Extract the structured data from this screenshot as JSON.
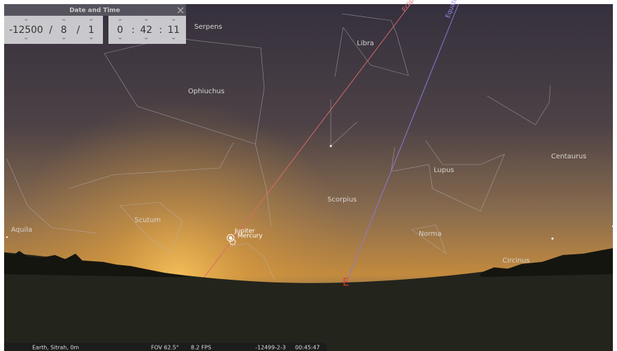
{
  "dialog": {
    "title": "Date and Time",
    "date_fields": [
      "-12500",
      "8",
      "1"
    ],
    "date_separator": "/",
    "time_fields": [
      "0",
      "42",
      "11"
    ],
    "time_separator": ":"
  },
  "sky_labels": {
    "constellations": [
      "Serpens",
      "Libra",
      "Ophiuchus",
      "Centaurus",
      "Lupus",
      "Scorpius",
      "Scutum",
      "Aquila",
      "Norma",
      "Circinus"
    ],
    "planets": [
      "Jupiter",
      "Mercury"
    ],
    "lines": [
      "Ecliptic",
      "Equator"
    ],
    "cardinal": "E"
  },
  "status_bar": {
    "location": "Earth, Sitrah, 0m",
    "fov": "FOV 62.5°",
    "fps": "8.2 FPS",
    "date": "-12499-2-3",
    "time": "00:45:47"
  }
}
